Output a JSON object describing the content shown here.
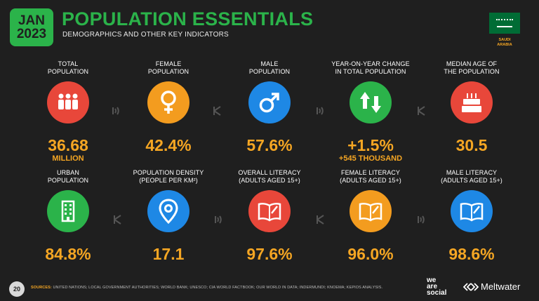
{
  "header": {
    "badge_month": "JAN",
    "badge_year": "2023",
    "title": "POPULATION ESSENTIALS",
    "subtitle": "DEMOGRAPHICS AND OTHER KEY INDICATORS",
    "country_label_line1": "SAUDI",
    "country_label_line2": "ARABIA"
  },
  "colors": {
    "accent_green": "#2bb34a",
    "value_orange": "#f5a623",
    "background": "#1f1f1f"
  },
  "stats": {
    "total_population": {
      "label1": "TOTAL",
      "label2": "POPULATION",
      "value": "36.68",
      "sub": "MILLION",
      "color": "#e8473a",
      "icon": "people-icon"
    },
    "female_population": {
      "label1": "FEMALE",
      "label2": "POPULATION",
      "value": "42.4%",
      "color": "#f39c1f",
      "icon": "female-icon"
    },
    "male_population": {
      "label1": "MALE",
      "label2": "POPULATION",
      "value": "57.6%",
      "color": "#1e88e5",
      "icon": "male-icon"
    },
    "yoy_change": {
      "label1": "YEAR-ON-YEAR CHANGE",
      "label2": "IN TOTAL POPULATION",
      "value": "+1.5%",
      "sub": "+545 THOUSAND",
      "color": "#2bb34a",
      "icon": "up-down-arrows-icon"
    },
    "median_age": {
      "label1": "MEDIAN AGE OF",
      "label2": "THE POPULATION",
      "value": "30.5",
      "color": "#e8473a",
      "icon": "birthday-cake-icon"
    },
    "urban_population": {
      "label1": "URBAN",
      "label2": "POPULATION",
      "value": "84.8%",
      "color": "#2bb34a",
      "icon": "building-icon"
    },
    "population_density": {
      "label1": "POPULATION DENSITY",
      "label2": "(PEOPLE PER KM²)",
      "value": "17.1",
      "color": "#1e88e5",
      "icon": "location-pin-icon"
    },
    "overall_literacy": {
      "label1": "OVERALL LITERACY",
      "label2": "(ADULTS AGED 15+)",
      "value": "97.6%",
      "color": "#e8473a",
      "icon": "book-icon"
    },
    "female_literacy": {
      "label1": "FEMALE LITERACY",
      "label2": "(ADULTS AGED 15+)",
      "value": "96.0%",
      "color": "#f39c1f",
      "icon": "book-icon"
    },
    "male_literacy": {
      "label1": "MALE LITERACY",
      "label2": "(ADULTS AGED 15+)",
      "value": "98.6%",
      "color": "#1e88e5",
      "icon": "book-icon"
    }
  },
  "footer": {
    "page_number": "20",
    "sources_label": "SOURCES:",
    "sources_text": "UNITED NATIONS; LOCAL GOVERNMENT AUTHORITIES; WORLD BANK; UNESCO; CIA WORLD FACTBOOK; OUR WORLD IN DATA; INDERMUNDI; KNOEMA; KEPIOS ANALYSIS.",
    "brand1_line1": "we",
    "brand1_line2": "are",
    "brand1_line3": "social",
    "brand2": "Meltwater"
  }
}
